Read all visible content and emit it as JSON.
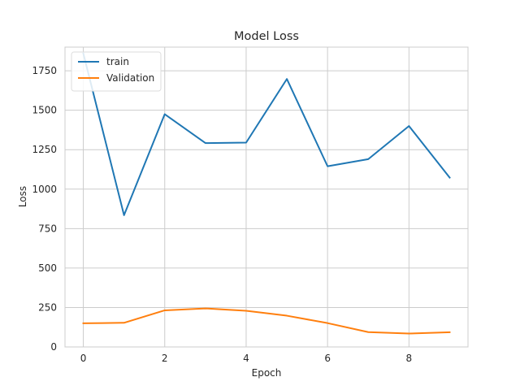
{
  "chart_data": {
    "type": "line",
    "title": "Model Loss",
    "xlabel": "Epoch",
    "ylabel": "Loss",
    "x": [
      0,
      1,
      2,
      3,
      4,
      5,
      6,
      7,
      8,
      9
    ],
    "xlim": [
      -0.45,
      9.45
    ],
    "ylim": [
      0,
      1900
    ],
    "xticks": [
      0,
      2,
      4,
      6,
      8
    ],
    "yticks": [
      0,
      250,
      500,
      750,
      1000,
      1250,
      1500,
      1750
    ],
    "grid": true,
    "legend_position": "top-left",
    "series": [
      {
        "name": "train",
        "color": "#1f77b4",
        "values": [
          1860,
          835,
          1475,
          1292,
          1295,
          1698,
          1145,
          1190,
          1400,
          1073
        ]
      },
      {
        "name": "Validation",
        "color": "#ff7f0e",
        "values": [
          150,
          153,
          232,
          244,
          229,
          198,
          151,
          94,
          85,
          93
        ]
      }
    ]
  }
}
